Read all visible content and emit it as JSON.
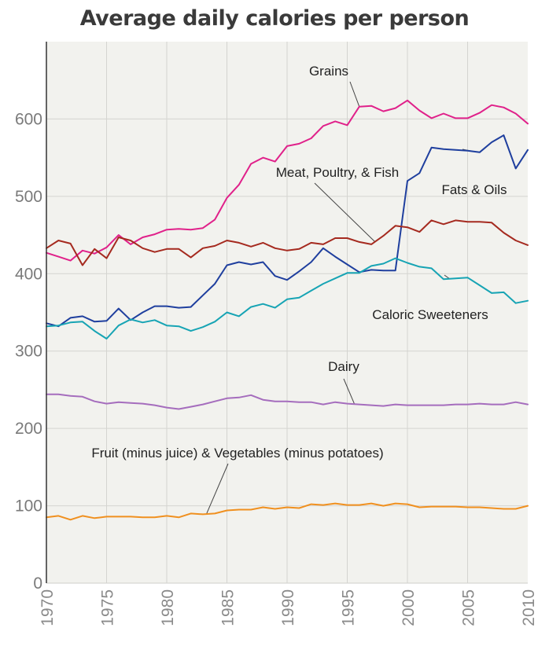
{
  "chart_data": {
    "type": "line",
    "title": "Average daily calories per person",
    "xlabel": "",
    "ylabel": "",
    "xlim": [
      1970,
      2010
    ],
    "ylim": [
      0,
      700
    ],
    "x_ticks": [
      1970,
      1975,
      1980,
      1985,
      1990,
      1995,
      2000,
      2005,
      2010
    ],
    "y_ticks": [
      0,
      100,
      200,
      300,
      400,
      500,
      600
    ],
    "grid": true,
    "x": [
      1970,
      1971,
      1972,
      1973,
      1974,
      1975,
      1976,
      1977,
      1978,
      1979,
      1980,
      1981,
      1982,
      1983,
      1984,
      1985,
      1986,
      1987,
      1988,
      1989,
      1990,
      1991,
      1992,
      1993,
      1994,
      1995,
      1996,
      1997,
      1998,
      1999,
      2000,
      2001,
      2002,
      2003,
      2004,
      2005,
      2006,
      2007,
      2008,
      2009,
      2010
    ],
    "series": [
      {
        "name": "Grains",
        "color": "#e0218a",
        "values": [
          427,
          422,
          417,
          430,
          426,
          434,
          450,
          438,
          447,
          451,
          457,
          458,
          457,
          459,
          470,
          498,
          515,
          542,
          550,
          545,
          565,
          568,
          575,
          591,
          597,
          592,
          616,
          617,
          610,
          614,
          624,
          611,
          601,
          607,
          601,
          601,
          608,
          618,
          615,
          607,
          594
        ]
      },
      {
        "name": "Fats & Oils",
        "color": "#1f3f9e",
        "values": [
          336,
          332,
          343,
          345,
          338,
          339,
          355,
          340,
          350,
          358,
          358,
          356,
          357,
          372,
          387,
          411,
          415,
          412,
          415,
          397,
          392,
          403,
          415,
          433,
          422,
          412,
          402,
          405,
          404,
          404,
          520,
          530,
          563,
          561,
          560,
          559,
          557,
          570,
          579,
          536,
          560
        ]
      },
      {
        "name": "Meat, Poultry, & Fish",
        "color": "#a52a1f",
        "values": [
          433,
          443,
          439,
          411,
          432,
          420,
          447,
          443,
          433,
          428,
          432,
          432,
          421,
          433,
          436,
          443,
          440,
          435,
          440,
          433,
          430,
          432,
          440,
          438,
          446,
          446,
          441,
          438,
          449,
          462,
          460,
          454,
          469,
          464,
          469,
          467,
          467,
          466,
          453,
          443,
          437
        ]
      },
      {
        "name": "Caloric Sweeteners",
        "color": "#17a4b4",
        "values": [
          332,
          333,
          337,
          338,
          326,
          316,
          333,
          341,
          337,
          340,
          333,
          332,
          326,
          331,
          338,
          350,
          345,
          357,
          361,
          356,
          367,
          369,
          378,
          387,
          394,
          401,
          401,
          410,
          413,
          420,
          414,
          409,
          407,
          393,
          394,
          395,
          385,
          375,
          376,
          362,
          365
        ]
      },
      {
        "name": "Dairy",
        "color": "#a56dbd",
        "values": [
          244,
          244,
          242,
          241,
          235,
          232,
          234,
          233,
          232,
          230,
          227,
          225,
          228,
          231,
          235,
          239,
          240,
          243,
          237,
          235,
          235,
          234,
          234,
          231,
          234,
          232,
          231,
          230,
          229,
          231,
          230,
          230,
          230,
          230,
          231,
          231,
          232,
          231,
          231,
          234,
          231
        ]
      },
      {
        "name": "Fruit (minus juice) & Vegetables (minus potatoes)",
        "color": "#f0901f",
        "values": [
          85,
          87,
          82,
          87,
          84,
          86,
          86,
          86,
          85,
          85,
          87,
          85,
          90,
          89,
          90,
          94,
          95,
          95,
          98,
          96,
          98,
          97,
          102,
          101,
          103,
          101,
          101,
          103,
          100,
          103,
          102,
          98,
          99,
          99,
          99,
          98,
          98,
          97,
          96,
          96,
          100
        ]
      }
    ],
    "annotations": [
      {
        "text": "Grains",
        "series": 0
      },
      {
        "text": "Fats & Oils",
        "series": 1
      },
      {
        "text": "Meat, Poultry, & Fish",
        "series": 2
      },
      {
        "text": "Caloric Sweeteners",
        "series": 3
      },
      {
        "text": "Dairy",
        "series": 4
      },
      {
        "text": "Fruit (minus juice) & Vegetables (minus potatoes)",
        "series": 5
      }
    ]
  }
}
